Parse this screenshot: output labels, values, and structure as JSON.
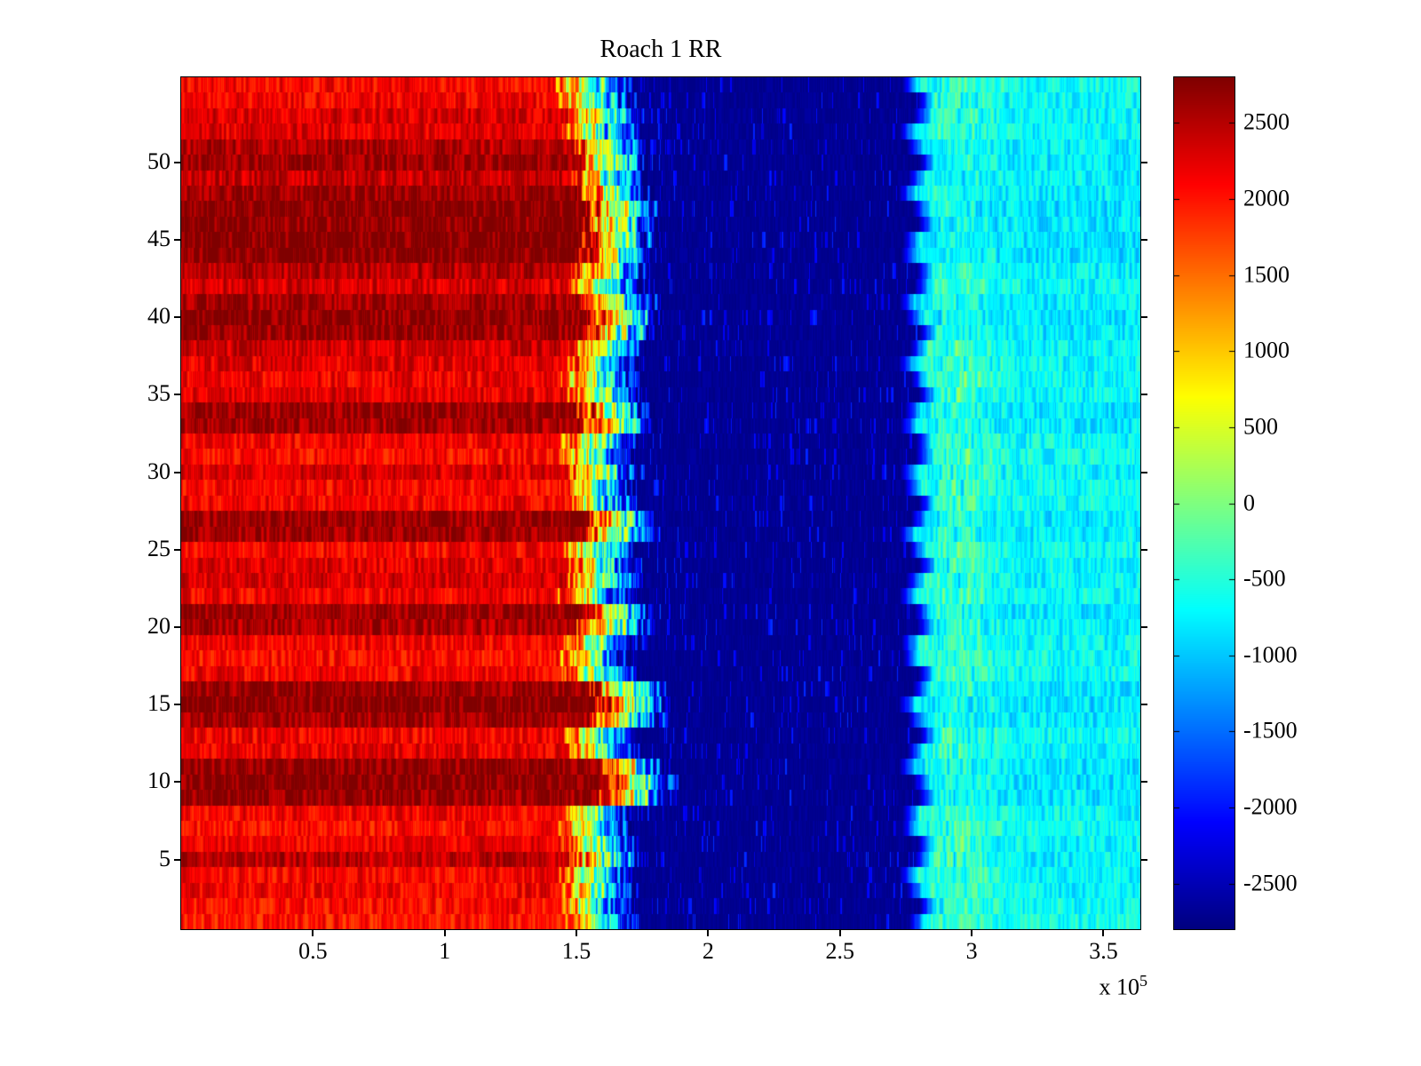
{
  "title": "Roach 1 RR",
  "axis": {
    "x_tick_labels": [
      "0.5",
      "1",
      "1.5",
      "2",
      "2.5",
      "3",
      "3.5"
    ],
    "x_tick_values": [
      0.5,
      1,
      1.5,
      2,
      2.5,
      3,
      3.5
    ],
    "x_scale_prefix": "x 10",
    "x_scale_exponent": "5",
    "y_tick_labels": [
      "5",
      "10",
      "15",
      "20",
      "25",
      "30",
      "35",
      "40",
      "45",
      "50"
    ],
    "y_tick_values": [
      5,
      10,
      15,
      20,
      25,
      30,
      35,
      40,
      45,
      50
    ]
  },
  "colorbar": {
    "tick_labels": [
      "2500",
      "2000",
      "1500",
      "1000",
      "500",
      "0",
      "-500",
      "-1000",
      "-1500",
      "-2000",
      "-2500"
    ],
    "tick_values": [
      2500,
      2000,
      1500,
      1000,
      500,
      0,
      -500,
      -1000,
      -1500,
      -2000,
      -2500
    ]
  },
  "chart_data": {
    "type": "heatmap",
    "title": "Roach 1 RR",
    "colormap": "jet",
    "color_limits": [
      -2800,
      2800
    ],
    "x_range": [
      0,
      364000
    ],
    "x_axis_multiplier": 100000,
    "n_rows": 55,
    "y_range": [
      0.5,
      55.5
    ],
    "regions": {
      "transition_width_1e5": 0.3,
      "deep_value": -2760,
      "deep_end_1e5": 2.76,
      "green_patch_center_1e5": 2.95,
      "green_patch_sigma_1e5": 0.11
    },
    "row_plateau_value": [
      2000,
      2050,
      2150,
      2100,
      2450,
      2200,
      2050,
      2150,
      2650,
      2750,
      2700,
      2200,
      2150,
      2600,
      2750,
      2650,
      2150,
      2050,
      2150,
      2550,
      2650,
      2150,
      2300,
      2250,
      2100,
      2600,
      2650,
      2150,
      2100,
      2300,
      2050,
      2150,
      2600,
      2650,
      2250,
      2150,
      2250,
      2350,
      2650,
      2700,
      2600,
      2300,
      2500,
      2750,
      2750,
      2700,
      2750,
      2650,
      2400,
      2650,
      2500,
      2250,
      2300,
      2150,
      2100
    ],
    "row_transition_start_1e5": [
      1.45,
      1.42,
      1.44,
      1.43,
      1.47,
      1.44,
      1.42,
      1.43,
      1.58,
      1.6,
      1.57,
      1.45,
      1.44,
      1.55,
      1.57,
      1.54,
      1.44,
      1.43,
      1.45,
      1.5,
      1.52,
      1.43,
      1.46,
      1.45,
      1.44,
      1.52,
      1.53,
      1.44,
      1.43,
      1.46,
      1.42,
      1.44,
      1.52,
      1.5,
      1.45,
      1.44,
      1.46,
      1.47,
      1.52,
      1.54,
      1.51,
      1.46,
      1.48,
      1.5,
      1.52,
      1.51,
      1.53,
      1.5,
      1.47,
      1.49,
      1.48,
      1.44,
      1.46,
      1.43,
      1.42
    ],
    "row_recovery_value": [
      -600,
      -650,
      -700,
      -680,
      -750,
      -700,
      -650,
      -700,
      -800,
      -850,
      -820,
      -700,
      -680,
      -800,
      -850,
      -800,
      -700,
      -650,
      -700,
      -780,
      -800,
      -680,
      -720,
      -700,
      -650,
      -780,
      -800,
      -680,
      -650,
      -720,
      -650,
      -680,
      -780,
      -800,
      -700,
      -680,
      -700,
      -720,
      -800,
      -820,
      -780,
      -700,
      -750,
      -850,
      -850,
      -820,
      -850,
      -800,
      -750,
      -800,
      -780,
      -700,
      -720,
      -680,
      -650
    ],
    "row_green_patch_amplitude": [
      350,
      550,
      600,
      580,
      620,
      600,
      550,
      580,
      420,
      400,
      420,
      550,
      580,
      480,
      450,
      480,
      580,
      600,
      620,
      550,
      520,
      600,
      580,
      600,
      620,
      520,
      500,
      620,
      640,
      600,
      640,
      620,
      520,
      540,
      600,
      620,
      600,
      580,
      480,
      460,
      500,
      560,
      540,
      380,
      360,
      380,
      360,
      400,
      480,
      440,
      460,
      520,
      500,
      540,
      560
    ]
  }
}
